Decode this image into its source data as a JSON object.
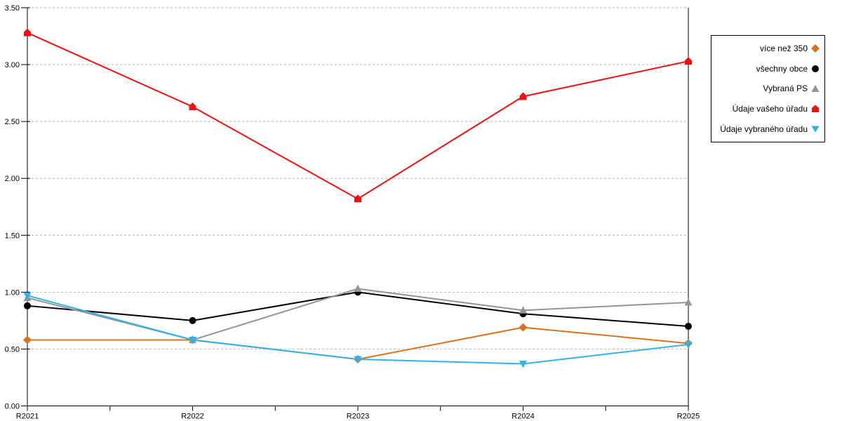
{
  "chart_data": {
    "type": "line",
    "title": "",
    "xlabel": "",
    "ylabel": "",
    "categories": [
      "R2021",
      "R2022",
      "R2023",
      "R2024",
      "R2025"
    ],
    "series": [
      {
        "name": "více než 350",
        "color": "#D9731E",
        "marker": "diamond",
        "values": [
          0.58,
          0.58,
          0.41,
          0.69,
          0.55
        ]
      },
      {
        "name": "všechny obce",
        "color": "#000000",
        "marker": "circle",
        "values": [
          0.88,
          0.75,
          1.0,
          0.81,
          0.7
        ]
      },
      {
        "name": "Vybraná PS",
        "color": "#949494",
        "marker": "triangle-up",
        "values": [
          0.95,
          0.58,
          1.03,
          0.84,
          0.91
        ]
      },
      {
        "name": "Údaje vašeho úřadu",
        "color": "#F20F0F",
        "marker": "pentagon",
        "values": [
          3.28,
          2.63,
          1.82,
          2.72,
          3.03
        ]
      },
      {
        "name": "Údaje vybraného úřadu",
        "color": "#31B2E7",
        "marker": "triangle-down",
        "values": [
          0.97,
          0.58,
          0.41,
          0.37,
          0.54
        ]
      }
    ],
    "ylim": [
      0,
      3.5
    ],
    "ytick_step": 0.5,
    "ytick_labels": [
      "0.00",
      "0.50",
      "1.00",
      "1.50",
      "2.00",
      "2.50",
      "3.00",
      "3.50"
    ],
    "grid": "horizontal-dashed",
    "gridline_color": "#b3b3b3",
    "axis_color": "#000000",
    "legend_position": "right"
  }
}
